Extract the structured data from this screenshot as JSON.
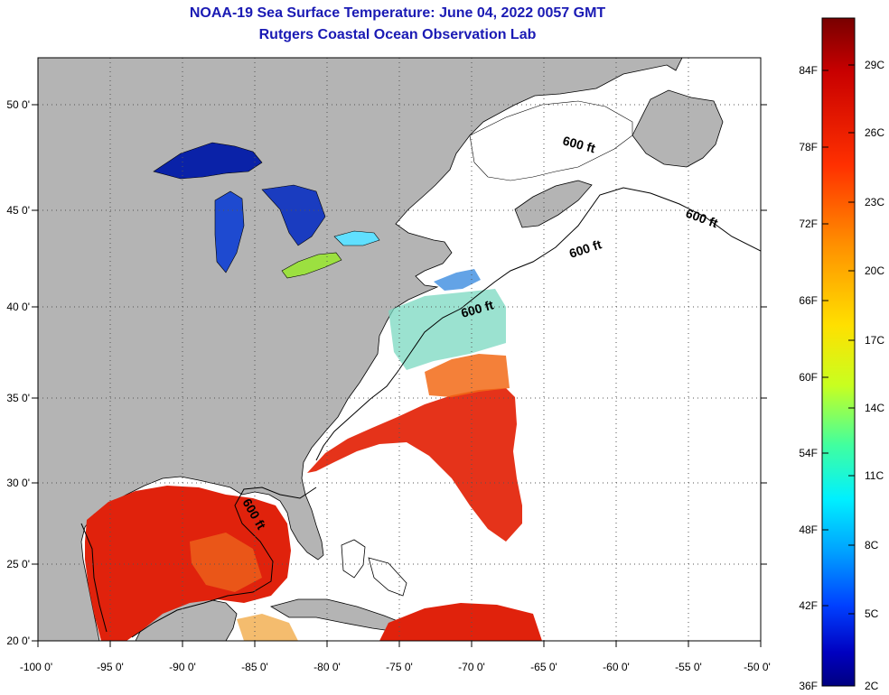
{
  "header": {
    "title": "NOAA-19 Sea Surface Temperature:  June 04, 2022 0057 GMT",
    "subtitle": "Rutgers Coastal Ocean Observation Lab"
  },
  "map": {
    "x_ticks": [
      "-100 0'",
      "-95 0'",
      "-90 0'",
      "-85 0'",
      "-80 0'",
      "-75 0'",
      "-70 0'",
      "-65 0'",
      "-60 0'",
      "-55 0'",
      "-50 0'"
    ],
    "y_ticks": [
      "50 0'",
      "45 0'",
      "40 0'",
      "35 0'",
      "30 0'",
      "25 0'",
      "20 0'"
    ],
    "contour_labels": [
      "600 ft",
      "600 ft",
      "600 ft",
      "600 ft",
      "600 ft"
    ],
    "colors": {
      "land": "#b4b4b4",
      "no_data": "#ffffff",
      "warm": "#e81e0a",
      "cold": "#0a1ea0"
    }
  },
  "colorbar": {
    "fahrenheit": [
      "84F",
      "78F",
      "72F",
      "66F",
      "60F",
      "54F",
      "48F",
      "42F",
      "36F"
    ],
    "celsius": [
      "29C",
      "26C",
      "23C",
      "20C",
      "17C",
      "14C",
      "11C",
      "8C",
      "5C",
      "2C"
    ]
  }
}
